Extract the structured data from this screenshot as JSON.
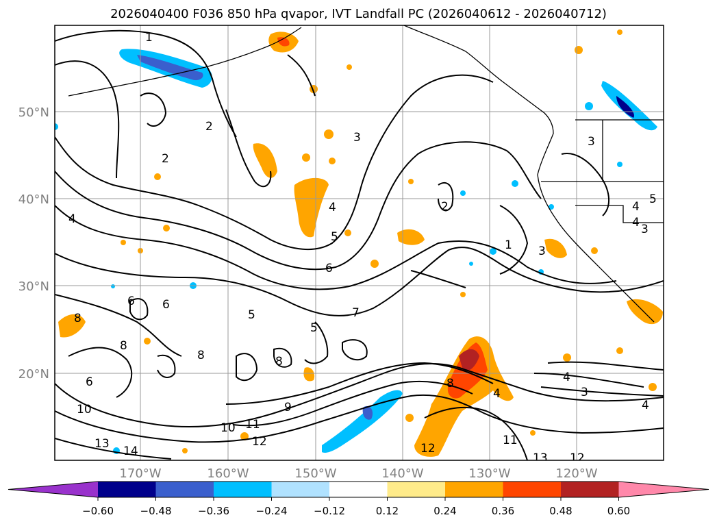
{
  "title": "2026040400 F036 850 hPa qvapor, IVT Landfall PC (2026040612 - 2026040712)",
  "map": {
    "lon_labels": [
      "170°W",
      "160°W",
      "150°W",
      "140°W",
      "130°W",
      "120°W"
    ],
    "lat_labels": [
      "50°N",
      "40°N",
      "30°N",
      "20°N"
    ],
    "axis_label_color": "#808080",
    "contour_labels": [
      "1",
      "2",
      "2",
      "3",
      "4",
      "4",
      "5",
      "6",
      "7",
      "8",
      "6",
      "5",
      "6",
      "8",
      "8",
      "6",
      "8",
      "9",
      "10",
      "11",
      "12",
      "13",
      "14",
      "10",
      "2",
      "1",
      "3",
      "4",
      "3",
      "4",
      "8",
      "12",
      "11",
      "13",
      "12",
      "4",
      "3",
      "4",
      "5",
      "3",
      "4",
      "5"
    ]
  },
  "colorbar": {
    "ticks": [
      "−0.60",
      "−0.48",
      "−0.36",
      "−0.24",
      "−0.12",
      "0.12",
      "0.24",
      "0.36",
      "0.48",
      "0.60"
    ],
    "colors": [
      "#9932cc",
      "#00008b",
      "#3a5fcd",
      "#00bfff",
      "#b0e2ff",
      "#ffffff",
      "#ffeb8a",
      "#ffa500",
      "#ff4500",
      "#b22222",
      "#ff88aa"
    ]
  }
}
